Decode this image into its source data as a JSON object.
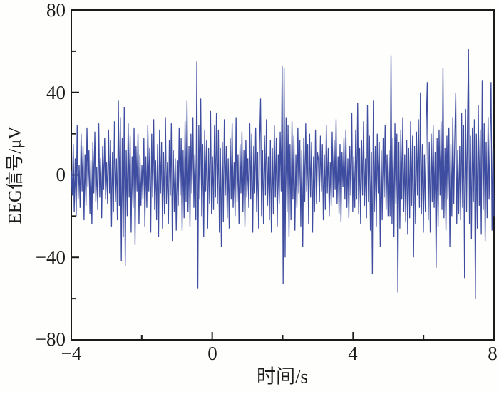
{
  "figure": {
    "background": "#fefefc",
    "axis_color": "#1a1a1a",
    "line_color": "#3f4da0"
  },
  "chart_data": {
    "type": "line",
    "title": "",
    "xlabel": "时间/s",
    "ylabel": "EEG信号/μV",
    "xlim": [
      -4,
      8
    ],
    "ylim": [
      -80,
      80
    ],
    "grid": false,
    "legend": null,
    "x_major_ticks": [
      -4,
      0,
      4,
      8
    ],
    "x_minor_ticks": [
      -2,
      2,
      6
    ],
    "y_major_ticks": [
      80,
      40,
      0,
      -40,
      -80
    ],
    "y_minor_ticks": [
      60,
      20,
      -20,
      -60
    ],
    "x_tick_labels": [
      "−4",
      "0",
      "4",
      "8"
    ],
    "y_tick_labels": [
      "80",
      "40",
      "0",
      "−40",
      "−80"
    ],
    "series": [
      {
        "name": "EEG信号",
        "color": "#3f4da0",
        "x_start": -4,
        "x_end": 8,
        "sampling": "uniform",
        "values": [
          2,
          -10,
          15,
          -18,
          8,
          -20,
          24,
          -12,
          5,
          -16,
          20,
          -8,
          14,
          -22,
          10,
          -15,
          23,
          -6,
          12,
          -19,
          7,
          -24,
          16,
          -9,
          21,
          -13,
          4,
          -17,
          25,
          -11,
          8,
          -21,
          14,
          -7,
          18,
          -12,
          6,
          -14,
          22,
          -9,
          17,
          -25,
          11,
          -18,
          26,
          -13,
          8,
          -22,
          36,
          -15,
          28,
          -42,
          18,
          -30,
          33,
          -44,
          12,
          -20,
          25,
          -11,
          19,
          -28,
          9,
          -16,
          23,
          -34,
          14,
          -8,
          20,
          -24,
          10,
          -15,
          5,
          -12,
          18,
          -25,
          9,
          -16,
          24,
          -8,
          13,
          -28,
          20,
          -11,
          27,
          -17,
          7,
          -22,
          15,
          -30,
          22,
          -9,
          16,
          -26,
          11,
          -19,
          28,
          -14,
          6,
          -24,
          17,
          -10,
          25,
          -32,
          12,
          -18,
          8,
          -27,
          7,
          -15,
          23,
          -10,
          18,
          -27,
          12,
          -21,
          26,
          -13,
          36,
          -18,
          14,
          -25,
          20,
          -9,
          28,
          -16,
          10,
          -22,
          55,
          -55,
          24,
          -12,
          37,
          -20,
          15,
          -30,
          22,
          -8,
          17,
          -26,
          13,
          -14,
          31,
          -19,
          9,
          -17,
          24,
          -11,
          30,
          -14,
          22,
          -28,
          13,
          -35,
          16,
          -23,
          27,
          -10,
          14,
          -21,
          8,
          -26,
          18,
          -12,
          25,
          -16,
          6,
          -20,
          28,
          -13,
          10,
          -24,
          15,
          -9,
          21,
          -18,
          12,
          -25,
          17,
          -11,
          8,
          -16,
          25,
          -12,
          20,
          -28,
          14,
          -9,
          23,
          -18,
          11,
          -26,
          16,
          37,
          -20,
          12,
          -24,
          19,
          -10,
          27,
          -15,
          9,
          -22,
          17,
          -28,
          13,
          -19,
          24,
          -11,
          18,
          -25,
          10,
          -14,
          21,
          -8,
          53,
          -53,
          52,
          -40,
          28,
          -18,
          24,
          -30,
          15,
          -22,
          26,
          -12,
          19,
          -27,
          10,
          -16,
          23,
          -9,
          17,
          -25,
          12,
          -35,
          18,
          -13,
          25,
          -8,
          15,
          -24,
          20,
          -11,
          16,
          -28,
          9,
          -18,
          22,
          -14,
          11,
          7,
          -13,
          19,
          -8,
          15,
          -22,
          10,
          -17,
          24,
          -9,
          13,
          -20,
          6,
          -15,
          21,
          -11,
          17,
          -7,
          27,
          -14,
          9,
          -19,
          15,
          -23,
          11,
          -6,
          18,
          -12,
          22,
          -16,
          8,
          -21,
          14,
          -10,
          30,
          -18,
          9,
          -16,
          22,
          -12,
          35,
          -19,
          13,
          -24,
          17,
          -10,
          26,
          -15,
          8,
          -21,
          34,
          -13,
          19,
          -27,
          11,
          -48,
          36,
          -18,
          14,
          -25,
          20,
          -9,
          16,
          -35,
          12,
          -22,
          18,
          -11,
          24,
          -17,
          10,
          -20,
          12,
          -20,
          58,
          -24,
          18,
          -30,
          25,
          -14,
          20,
          -57,
          16,
          -26,
          22,
          -12,
          28,
          -18,
          10,
          -23,
          17,
          -29,
          13,
          -21,
          26,
          -15,
          19,
          -40,
          14,
          -24,
          21,
          -10,
          27,
          -16,
          40,
          -19,
          15,
          -28,
          10,
          -18,
          26,
          45,
          -22,
          16,
          -28,
          20,
          -13,
          24,
          -16,
          11,
          -45,
          18,
          -25,
          22,
          -10,
          26,
          -17,
          52,
          -21,
          13,
          -27,
          19,
          -12,
          23,
          -35,
          15,
          -20,
          28,
          -14,
          17,
          40,
          -24,
          12,
          -19,
          14,
          -22,
          30,
          -16,
          24,
          -50,
          32,
          -18,
          26,
          61,
          -24,
          19,
          -31,
          23,
          -13,
          27,
          -60,
          20,
          -26,
          34,
          -15,
          22,
          -29,
          46,
          -17,
          25,
          -32,
          16,
          -21,
          28,
          -12,
          18,
          45,
          -27,
          13,
          -20
        ]
      }
    ]
  }
}
